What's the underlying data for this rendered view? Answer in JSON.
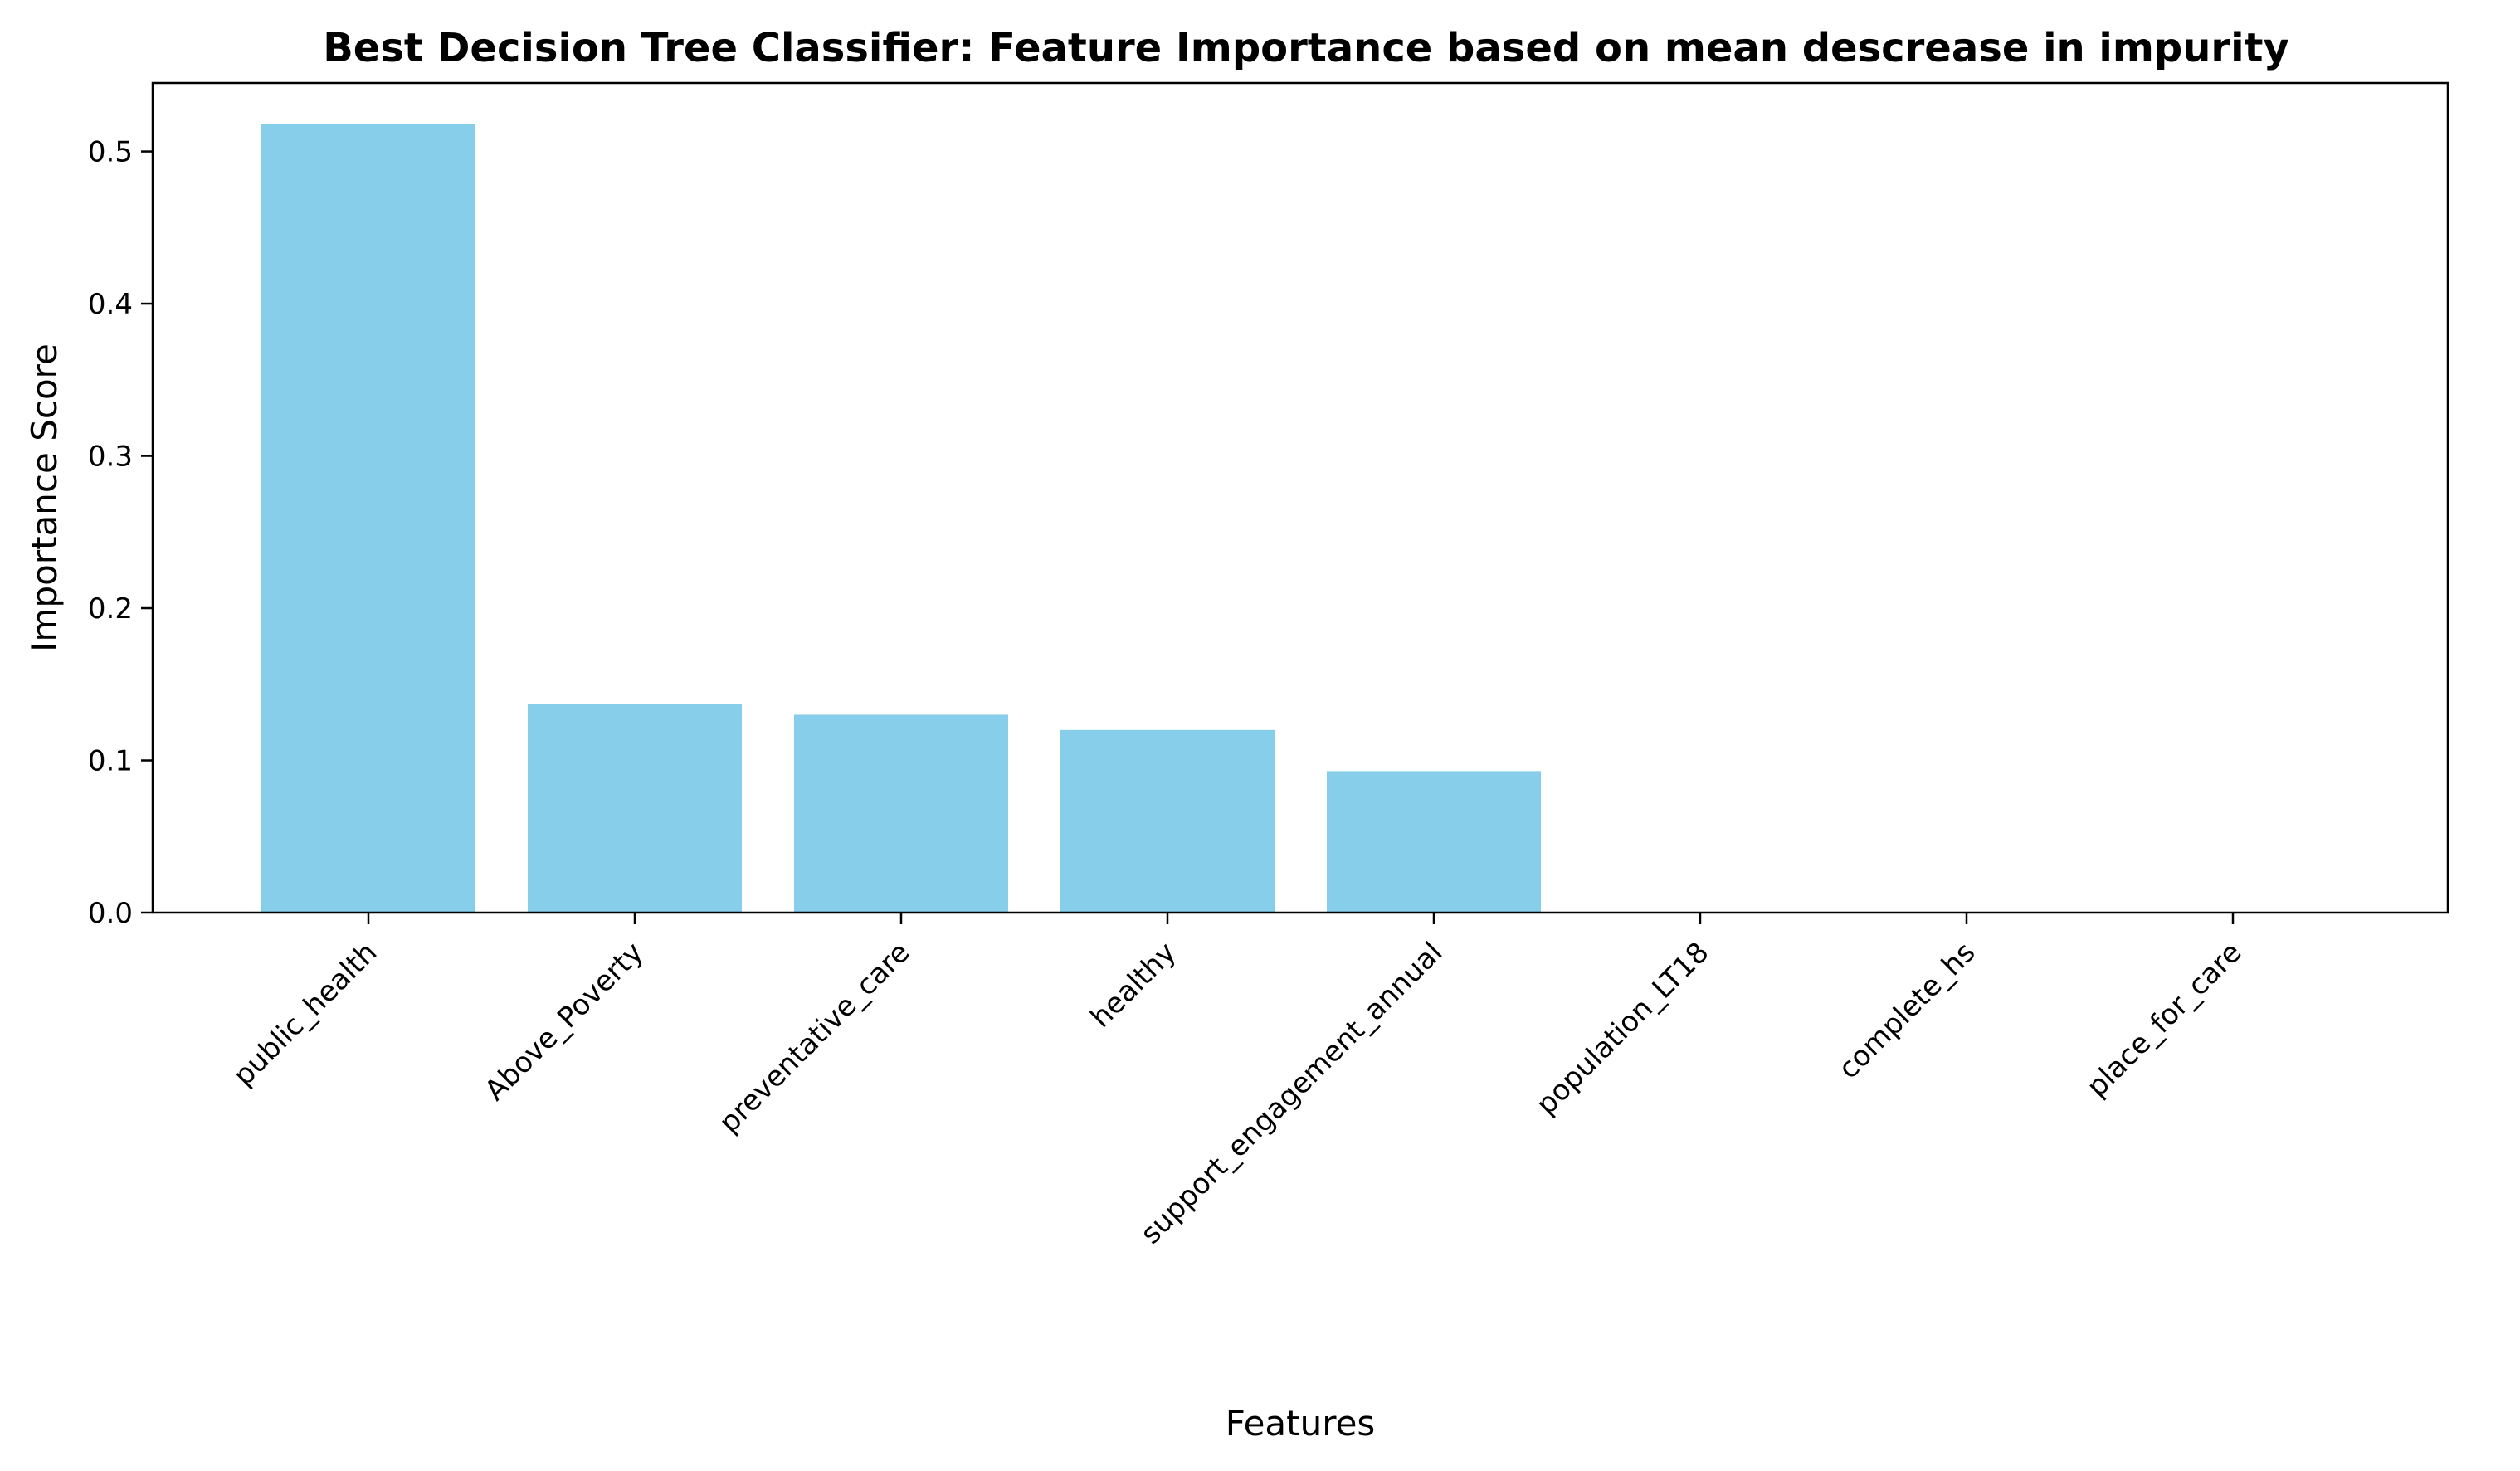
{
  "chart_data": {
    "type": "bar",
    "title": "Best Decision Tree Classifier: Feature Importance based on mean descrease in impurity",
    "xlabel": "Features",
    "ylabel": "Importance Score",
    "categories": [
      "public_health",
      "Above_Poverty",
      "preventative_care",
      "healthy",
      "support_engagement_annual",
      "population_LT18",
      "complete_hs",
      "place_for_care"
    ],
    "values": [
      0.518,
      0.137,
      0.13,
      0.12,
      0.093,
      0.0,
      0.0,
      0.0
    ],
    "yticks": [
      "0.0",
      "0.1",
      "0.2",
      "0.3",
      "0.4",
      "0.5"
    ],
    "ylim": [
      0,
      0.545
    ],
    "bar_color": "#87ceeb",
    "grid": false,
    "legend": "none"
  }
}
